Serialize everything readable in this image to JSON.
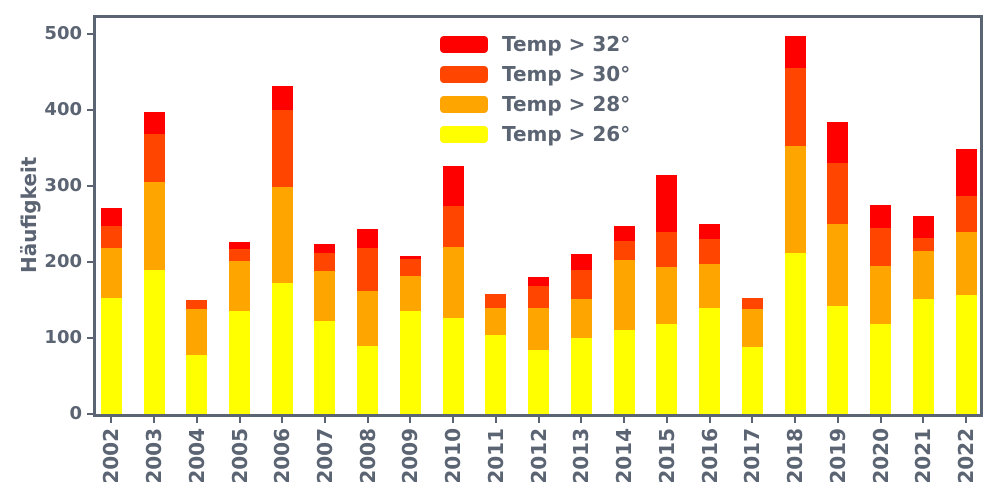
{
  "chart_data": {
    "type": "bar",
    "stacked": true,
    "ylabel": "Häufigkeit",
    "xlabel": "",
    "grid": false,
    "ylim": [
      0,
      521
    ],
    "yticks": [
      0,
      100,
      200,
      300,
      400,
      500
    ],
    "categories": [
      "2002",
      "2003",
      "2004",
      "2005",
      "2006",
      "2007",
      "2008",
      "2009",
      "2010",
      "2011",
      "2012",
      "2013",
      "2014",
      "2015",
      "2016",
      "2017",
      "2018",
      "2019",
      "2020",
      "2021",
      "2022"
    ],
    "series": [
      {
        "name": "Temp > 26°",
        "color": "#ffff00",
        "values": [
          153,
          190,
          78,
          136,
          173,
          122,
          90,
          135,
          126,
          104,
          84,
          100,
          111,
          118,
          140,
          88,
          212,
          142,
          118,
          151,
          156
        ]
      },
      {
        "name": "Temp > 28°",
        "color": "#ffa500",
        "values": [
          66,
          115,
          60,
          65,
          126,
          66,
          72,
          46,
          94,
          35,
          55,
          51,
          91,
          75,
          57,
          50,
          141,
          108,
          77,
          64,
          84
        ]
      },
      {
        "name": "Temp > 30°",
        "color": "#ff4500",
        "values": [
          28,
          63,
          12,
          16,
          101,
          24,
          56,
          23,
          54,
          19,
          30,
          38,
          26,
          47,
          33,
          14,
          102,
          80,
          50,
          17,
          47
        ]
      },
      {
        "name": "Temp > 32°",
        "color": "#ff0000",
        "values": [
          24,
          30,
          0,
          9,
          32,
          12,
          25,
          4,
          52,
          0,
          11,
          22,
          19,
          74,
          20,
          0,
          43,
          54,
          30,
          29,
          62
        ]
      }
    ],
    "totals": [
      271,
      398,
      150,
      226,
      432,
      224,
      243,
      208,
      326,
      158,
      180,
      211,
      247,
      314,
      250,
      152,
      498,
      384,
      275,
      261,
      349
    ],
    "legend": {
      "position": "upper center",
      "entries": [
        {
          "label": "Temp > 32°",
          "color": "#ff0000"
        },
        {
          "label": "Temp > 30°",
          "color": "#ff4500"
        },
        {
          "label": "Temp > 28°",
          "color": "#ffa500"
        },
        {
          "label": "Temp > 26°",
          "color": "#ffff00"
        }
      ]
    },
    "axis_color": "#5b6472",
    "text_color": "#5b6472",
    "background_color": "#ffffff"
  }
}
